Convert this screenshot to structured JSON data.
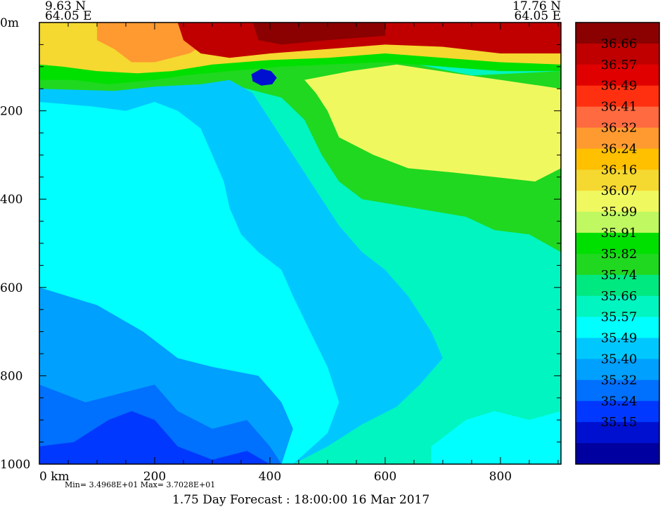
{
  "chart_data": {
    "type": "heatmap",
    "title": "",
    "corner_left": {
      "lat": "9.63 N",
      "lon": "64.05 E"
    },
    "corner_right": {
      "lat": "17.76 N",
      "lon": "64.05 E"
    },
    "y_ticks": [
      "0m",
      "200",
      "400",
      "600",
      "800",
      "1000"
    ],
    "y_values": [
      0,
      200,
      400,
      600,
      800,
      1000
    ],
    "x_ticks": [
      "0 km",
      "200",
      "400",
      "600",
      "800"
    ],
    "x_values": [
      0,
      200,
      400,
      600,
      800
    ],
    "xlim": [
      0,
      905
    ],
    "ylim": [
      1000,
      0
    ],
    "min_max_label": "Min= 3.4968E+01   Max= 3.7028E+01",
    "forecast_label": "1.75 Day Forecast : 18:00:00  16 Mar 2017",
    "colorbar": {
      "labels": [
        "36.66",
        "36.57",
        "36.49",
        "36.41",
        "36.32",
        "36.24",
        "36.16",
        "36.07",
        "35.99",
        "35.91",
        "35.82",
        "35.74",
        "35.66",
        "35.57",
        "35.49",
        "35.40",
        "35.32",
        "35.24",
        "35.15"
      ],
      "colors": [
        "#8b0000",
        "#c00000",
        "#e00000",
        "#ff3010",
        "#ff6a40",
        "#ff9a30",
        "#ffc000",
        "#f5d830",
        "#f0f860",
        "#bff860",
        "#00e000",
        "#20d820",
        "#00e880",
        "#00f5c0",
        "#00ffff",
        "#00c8ff",
        "#00a0ff",
        "#0070ff",
        "#0038ff",
        "#0010d0",
        "#0000a0"
      ]
    },
    "regions": [
      {
        "level": 11,
        "poly": [
          [
            0,
            100
          ],
          [
            130,
            100
          ],
          [
            250,
            110
          ],
          [
            400,
            85
          ],
          [
            500,
            90
          ],
          [
            600,
            80
          ],
          [
            750,
            120
          ],
          [
            905,
            110
          ],
          [
            905,
            520
          ],
          [
            850,
            480
          ],
          [
            790,
            470
          ],
          [
            740,
            440
          ],
          [
            650,
            420
          ],
          [
            560,
            400
          ],
          [
            520,
            360
          ],
          [
            490,
            300
          ],
          [
            460,
            220
          ],
          [
            420,
            170
          ],
          [
            330,
            140
          ],
          [
            200,
            150
          ],
          [
            100,
            160
          ],
          [
            0,
            150
          ]
        ]
      },
      {
        "level": 8,
        "poly": [
          [
            460,
            130
          ],
          [
            540,
            110
          ],
          [
            620,
            95
          ],
          [
            720,
            115
          ],
          [
            800,
            130
          ],
          [
            905,
            150
          ],
          [
            905,
            330
          ],
          [
            860,
            360
          ],
          [
            790,
            350
          ],
          [
            720,
            340
          ],
          [
            640,
            330
          ],
          [
            580,
            300
          ],
          [
            520,
            260
          ],
          [
            500,
            200
          ],
          [
            480,
            160
          ]
        ]
      },
      {
        "level": 10,
        "poly": [
          [
            0,
            0
          ],
          [
            905,
            0
          ],
          [
            905,
            110
          ],
          [
            800,
            110
          ],
          [
            700,
            100
          ],
          [
            600,
            90
          ],
          [
            500,
            95
          ],
          [
            420,
            100
          ],
          [
            330,
            110
          ],
          [
            250,
            120
          ],
          [
            200,
            130
          ],
          [
            120,
            140
          ],
          [
            60,
            130
          ],
          [
            0,
            130
          ]
        ]
      },
      {
        "level": 7,
        "poly": [
          [
            0,
            0
          ],
          [
            905,
            0
          ],
          [
            905,
            95
          ],
          [
            800,
            90
          ],
          [
            700,
            80
          ],
          [
            600,
            70
          ],
          [
            500,
            80
          ],
          [
            400,
            85
          ],
          [
            300,
            95
          ],
          [
            230,
            110
          ],
          [
            170,
            115
          ],
          [
            100,
            110
          ],
          [
            40,
            100
          ],
          [
            0,
            95
          ]
        ]
      },
      {
        "level": 5,
        "poly": [
          [
            100,
            0
          ],
          [
            300,
            0
          ],
          [
            300,
            40
          ],
          [
            260,
            70
          ],
          [
            200,
            90
          ],
          [
            160,
            90
          ],
          [
            130,
            60
          ],
          [
            100,
            40
          ]
        ]
      },
      {
        "level": 1,
        "poly": [
          [
            240,
            0
          ],
          [
            905,
            0
          ],
          [
            905,
            70
          ],
          [
            800,
            70
          ],
          [
            700,
            55
          ],
          [
            600,
            50
          ],
          [
            500,
            60
          ],
          [
            400,
            70
          ],
          [
            330,
            80
          ],
          [
            280,
            70
          ],
          [
            250,
            40
          ]
        ]
      },
      {
        "level": 0,
        "poly": [
          [
            370,
            0
          ],
          [
            600,
            0
          ],
          [
            600,
            30
          ],
          [
            500,
            40
          ],
          [
            420,
            50
          ],
          [
            380,
            40
          ]
        ]
      },
      {
        "level": 19,
        "poly": [
          [
            368,
            117
          ],
          [
            385,
            105
          ],
          [
            402,
            110
          ],
          [
            412,
            125
          ],
          [
            404,
            140
          ],
          [
            385,
            143
          ],
          [
            370,
            133
          ]
        ]
      },
      {
        "level": 15,
        "poly": [
          [
            0,
            150
          ],
          [
            130,
            155
          ],
          [
            200,
            145
          ],
          [
            280,
            140
          ],
          [
            330,
            130
          ],
          [
            370,
            160
          ],
          [
            400,
            220
          ],
          [
            440,
            300
          ],
          [
            480,
            380
          ],
          [
            520,
            460
          ],
          [
            560,
            520
          ],
          [
            600,
            560
          ],
          [
            640,
            620
          ],
          [
            680,
            700
          ],
          [
            700,
            760
          ],
          [
            660,
            820
          ],
          [
            620,
            870
          ],
          [
            560,
            910
          ],
          [
            500,
            960
          ],
          [
            440,
            1000
          ],
          [
            0,
            1000
          ]
        ]
      },
      {
        "level": 14,
        "poly": [
          [
            0,
            180
          ],
          [
            90,
            190
          ],
          [
            150,
            200
          ],
          [
            200,
            180
          ],
          [
            240,
            200
          ],
          [
            280,
            240
          ],
          [
            300,
            300
          ],
          [
            320,
            360
          ],
          [
            330,
            420
          ],
          [
            350,
            480
          ],
          [
            380,
            520
          ],
          [
            420,
            560
          ],
          [
            440,
            620
          ],
          [
            470,
            700
          ],
          [
            500,
            780
          ],
          [
            520,
            860
          ],
          [
            500,
            930
          ],
          [
            440,
            1000
          ],
          [
            0,
            1000
          ]
        ]
      },
      {
        "level": 16,
        "poly": [
          [
            0,
            600
          ],
          [
            100,
            640
          ],
          [
            180,
            700
          ],
          [
            240,
            760
          ],
          [
            300,
            780
          ],
          [
            380,
            800
          ],
          [
            420,
            860
          ],
          [
            440,
            920
          ],
          [
            420,
            1000
          ],
          [
            0,
            1000
          ]
        ]
      },
      {
        "level": 17,
        "poly": [
          [
            0,
            820
          ],
          [
            80,
            860
          ],
          [
            140,
            840
          ],
          [
            200,
            820
          ],
          [
            240,
            880
          ],
          [
            300,
            920
          ],
          [
            360,
            900
          ],
          [
            400,
            960
          ],
          [
            420,
            1000
          ],
          [
            0,
            1000
          ]
        ]
      },
      {
        "level": 18,
        "poly": [
          [
            0,
            960
          ],
          [
            60,
            950
          ],
          [
            120,
            900
          ],
          [
            160,
            880
          ],
          [
            200,
            900
          ],
          [
            240,
            960
          ],
          [
            300,
            990
          ],
          [
            360,
            970
          ],
          [
            400,
            1000
          ],
          [
            0,
            1000
          ]
        ]
      },
      {
        "level": 14,
        "poly": [
          [
            680,
            960
          ],
          [
            740,
            900
          ],
          [
            790,
            880
          ],
          [
            850,
            900
          ],
          [
            905,
            880
          ],
          [
            905,
            1000
          ],
          [
            680,
            1000
          ]
        ]
      }
    ]
  }
}
